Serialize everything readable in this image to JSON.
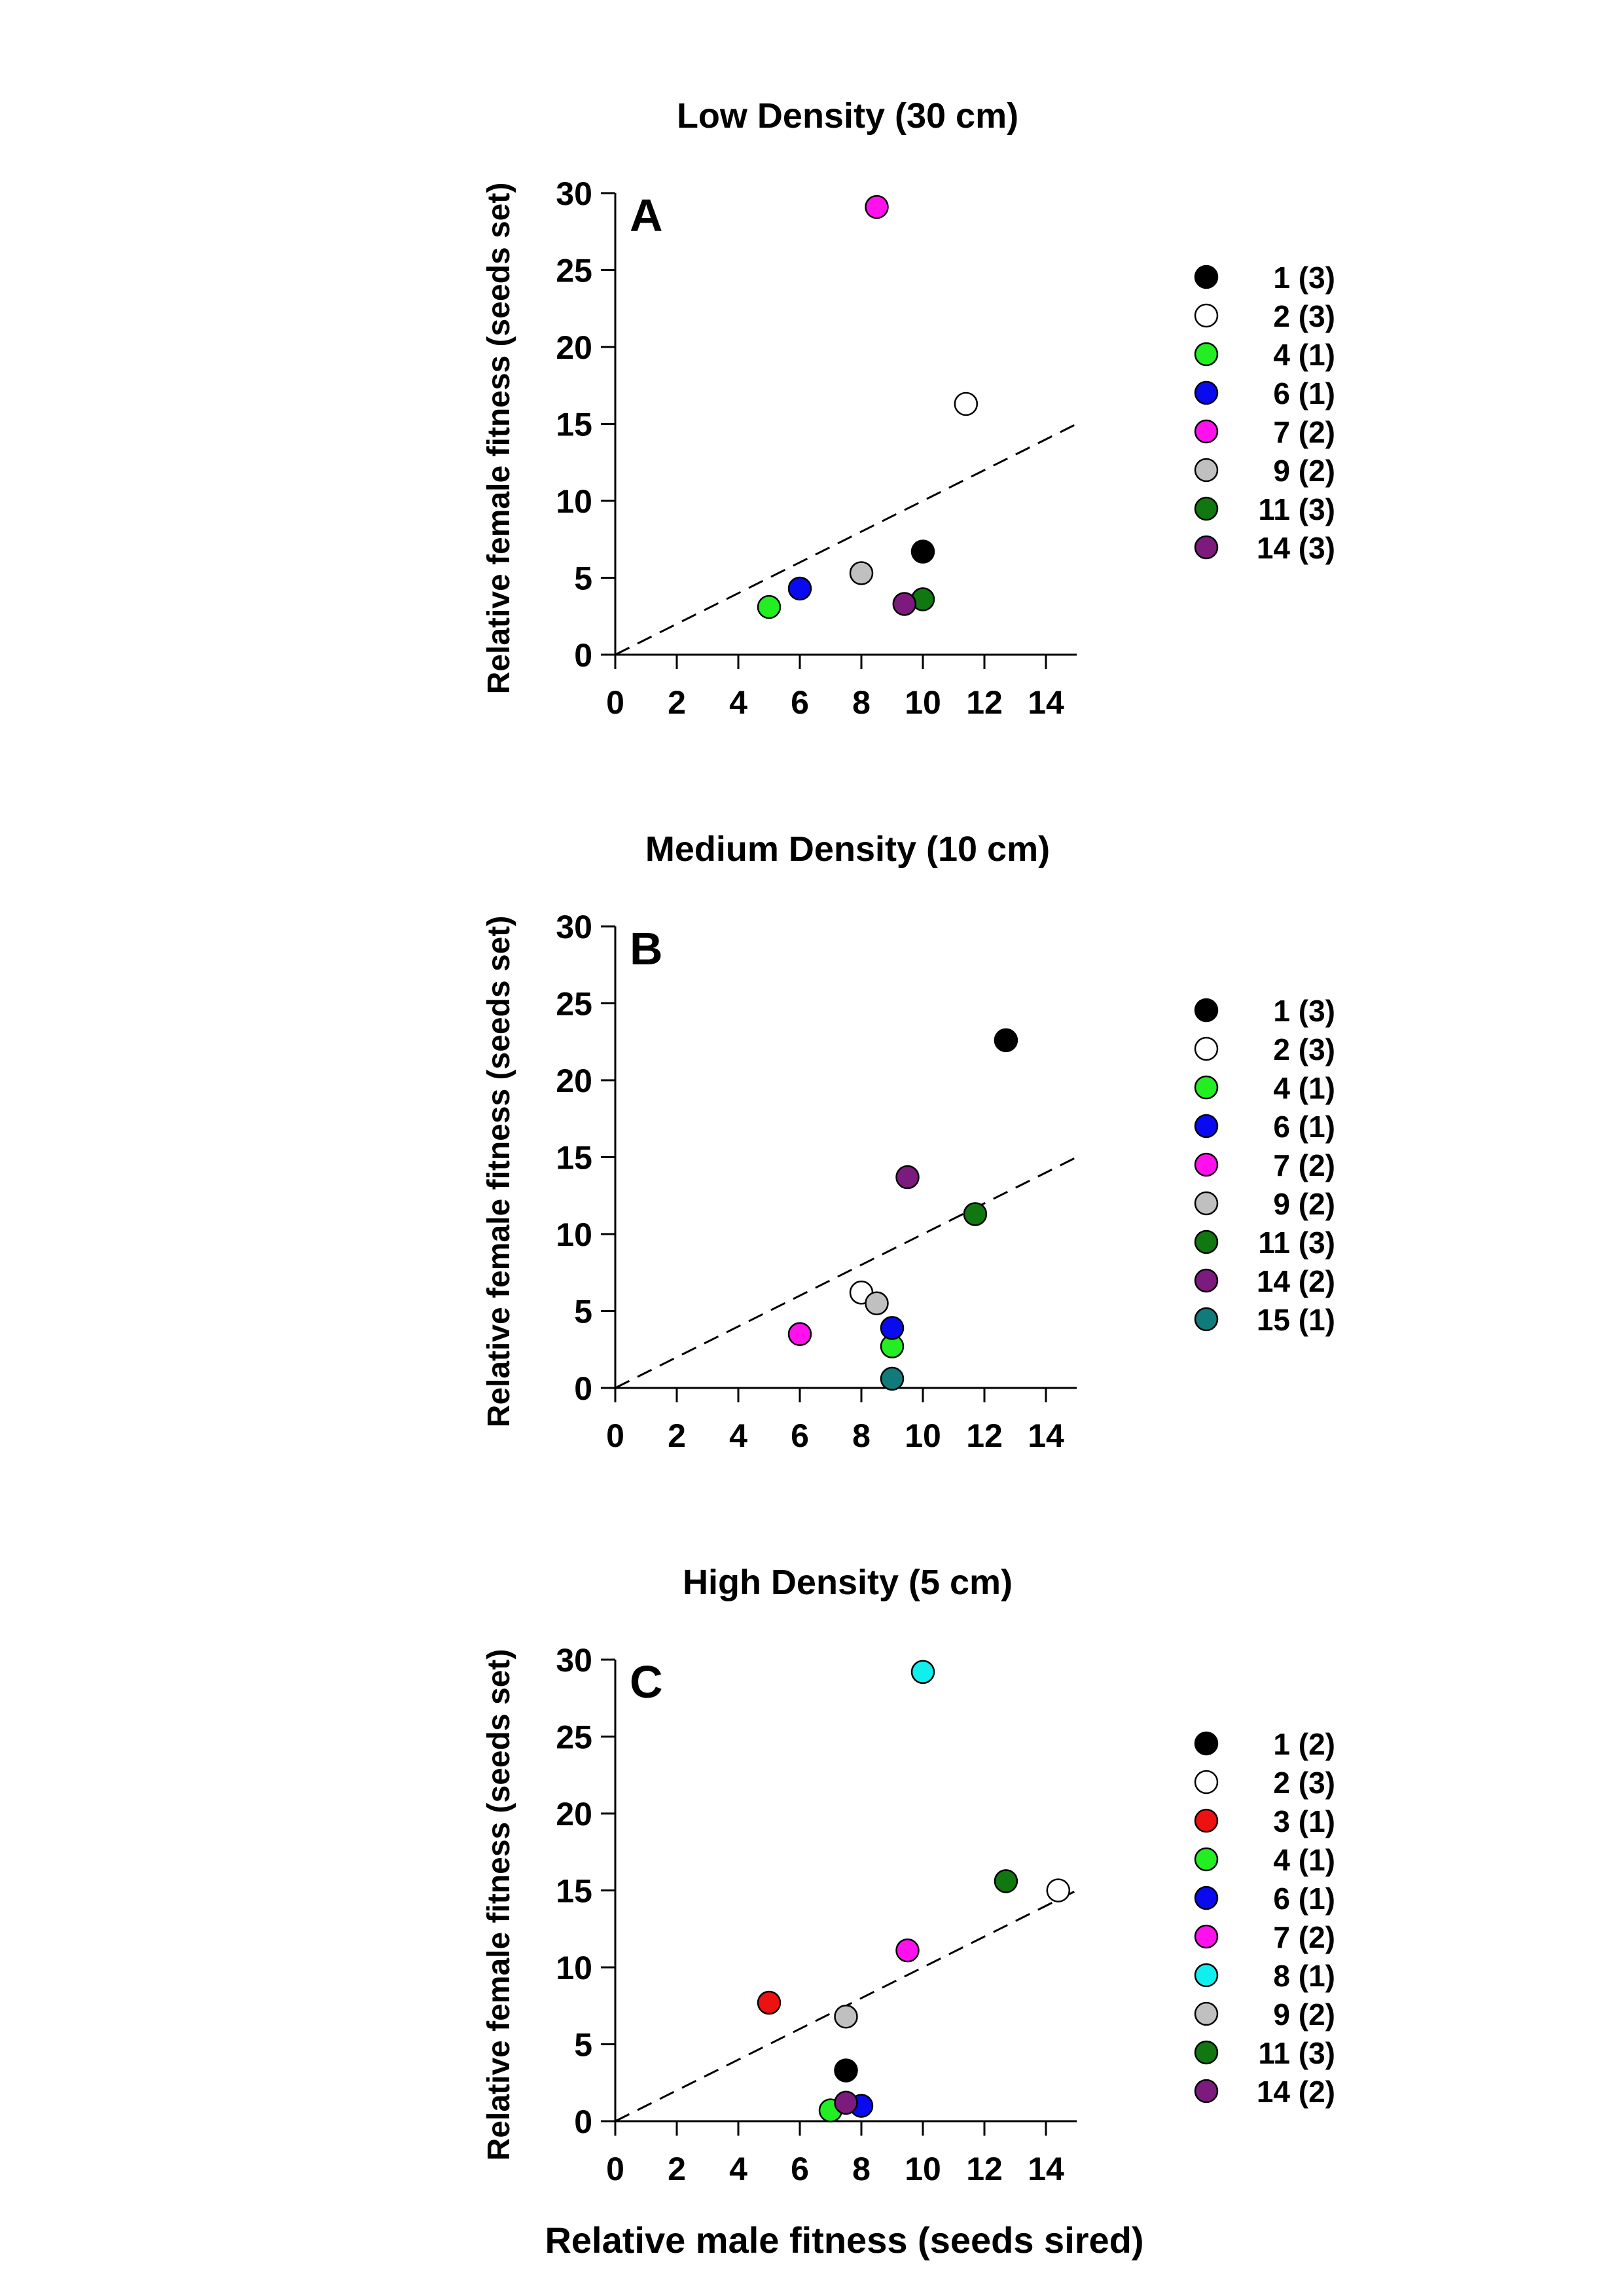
{
  "figure": {
    "x_axis_label": "Relative male fitness (seeds sired)"
  },
  "chart_data": [
    {
      "type": "scatter",
      "title": "Low Density (30 cm)",
      "panel_letter": "A",
      "xlabel": "",
      "ylabel": "Relative female fitness (seeds set)",
      "xlim": [
        0,
        15
      ],
      "ylim": [
        0,
        30
      ],
      "x_ticks": [
        0,
        2,
        4,
        6,
        8,
        10,
        12,
        14
      ],
      "y_ticks": [
        0,
        5,
        10,
        15,
        20,
        25,
        30
      ],
      "reference_line": {
        "style": "dashed",
        "from": [
          0,
          0
        ],
        "to": [
          15,
          15
        ]
      },
      "legend_position": "right",
      "series": [
        {
          "name": "1 (3)",
          "color": "#000000",
          "points": [
            [
              10.0,
              6.7
            ]
          ]
        },
        {
          "name": "2 (3)",
          "color": "#ffffff",
          "points": [
            [
              11.4,
              16.3
            ]
          ]
        },
        {
          "name": "4 (1)",
          "color": "#22ee22",
          "points": [
            [
              5.0,
              3.1
            ]
          ]
        },
        {
          "name": "6 (1)",
          "color": "#0a0af0",
          "points": [
            [
              6.0,
              4.3
            ]
          ]
        },
        {
          "name": "7 (2)",
          "color": "#ff11ee",
          "points": [
            [
              8.5,
              29.1
            ]
          ]
        },
        {
          "name": "9 (2)",
          "color": "#c0c0c0",
          "points": [
            [
              8.0,
              5.3
            ]
          ]
        },
        {
          "name": "11 (3)",
          "color": "#117711",
          "points": [
            [
              10.0,
              3.6
            ]
          ]
        },
        {
          "name": "14 (3)",
          "color": "#7d1a7d",
          "points": [
            [
              9.4,
              3.3
            ]
          ]
        }
      ]
    },
    {
      "type": "scatter",
      "title": "Medium Density (10 cm)",
      "panel_letter": "B",
      "xlabel": "",
      "ylabel": "Relative female fitness (seeds set)",
      "xlim": [
        0,
        15
      ],
      "ylim": [
        0,
        30
      ],
      "x_ticks": [
        0,
        2,
        4,
        6,
        8,
        10,
        12,
        14
      ],
      "y_ticks": [
        0,
        5,
        10,
        15,
        20,
        25,
        30
      ],
      "reference_line": {
        "style": "dashed",
        "from": [
          0,
          0
        ],
        "to": [
          15,
          15
        ]
      },
      "legend_position": "right",
      "series": [
        {
          "name": "1 (3)",
          "color": "#000000",
          "points": [
            [
              12.7,
              22.6
            ]
          ]
        },
        {
          "name": "2 (3)",
          "color": "#ffffff",
          "points": [
            [
              8.0,
              6.2
            ]
          ]
        },
        {
          "name": "4 (1)",
          "color": "#22ee22",
          "points": [
            [
              9.0,
              2.7
            ]
          ]
        },
        {
          "name": "6 (1)",
          "color": "#0a0af0",
          "points": [
            [
              9.0,
              3.9
            ]
          ]
        },
        {
          "name": "7 (2)",
          "color": "#ff11ee",
          "points": [
            [
              6.0,
              3.5
            ]
          ]
        },
        {
          "name": "9 (2)",
          "color": "#c0c0c0",
          "points": [
            [
              8.5,
              5.5
            ]
          ]
        },
        {
          "name": "11 (3)",
          "color": "#117711",
          "points": [
            [
              11.7,
              11.3
            ]
          ]
        },
        {
          "name": "14 (2)",
          "color": "#7d1a7d",
          "points": [
            [
              9.5,
              13.7
            ]
          ]
        },
        {
          "name": "15 (1)",
          "color": "#117a7a",
          "points": [
            [
              9.0,
              0.6
            ]
          ]
        }
      ]
    },
    {
      "type": "scatter",
      "title": "High Density (5 cm)",
      "panel_letter": "C",
      "xlabel": "Relative male fitness (seeds sired)",
      "ylabel": "Relative female fitness (seeds set)",
      "xlim": [
        0,
        15
      ],
      "ylim": [
        0,
        30
      ],
      "x_ticks": [
        0,
        2,
        4,
        6,
        8,
        10,
        12,
        14
      ],
      "y_ticks": [
        0,
        5,
        10,
        15,
        20,
        25,
        30
      ],
      "reference_line": {
        "style": "dashed",
        "from": [
          0,
          0
        ],
        "to": [
          15,
          15
        ]
      },
      "legend_position": "right",
      "series": [
        {
          "name": "1 (2)",
          "color": "#000000",
          "points": [
            [
              7.5,
              3.3
            ]
          ]
        },
        {
          "name": "2 (3)",
          "color": "#ffffff",
          "points": [
            [
              14.4,
              15.0
            ]
          ]
        },
        {
          "name": "3 (1)",
          "color": "#ee1111",
          "points": [
            [
              5.0,
              7.7
            ]
          ]
        },
        {
          "name": "4 (1)",
          "color": "#22ee22",
          "points": [
            [
              7.0,
              0.7
            ]
          ]
        },
        {
          "name": "6 (1)",
          "color": "#0a0af0",
          "points": [
            [
              8.0,
              1.0
            ]
          ]
        },
        {
          "name": "7 (2)",
          "color": "#ff11ee",
          "points": [
            [
              9.5,
              11.1
            ]
          ]
        },
        {
          "name": "8 (1)",
          "color": "#11eeee",
          "points": [
            [
              10.0,
              29.2
            ]
          ]
        },
        {
          "name": "9 (2)",
          "color": "#c0c0c0",
          "points": [
            [
              7.5,
              6.8
            ]
          ]
        },
        {
          "name": "11 (3)",
          "color": "#117711",
          "points": [
            [
              12.7,
              15.6
            ]
          ]
        },
        {
          "name": "14 (2)",
          "color": "#7d1a7d",
          "points": [
            [
              7.5,
              1.2
            ]
          ]
        }
      ]
    }
  ]
}
